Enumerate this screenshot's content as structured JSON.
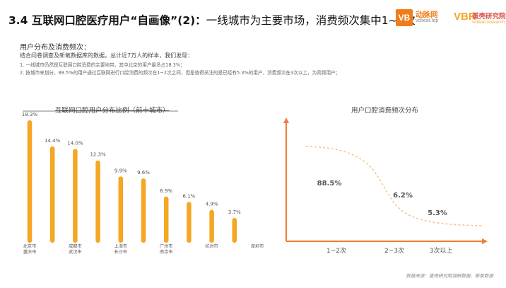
{
  "header": {
    "title_main": "3.4 互联网口腔医疗用户“自画像”(2)：",
    "title_sub": "一线城市为主要市场，消费频次集中1~2次"
  },
  "logos": {
    "vcbeat": {
      "mark": "VB",
      "name": "动脉网",
      "web": "vcbeat.top"
    },
    "vbr": {
      "mark": "VBR",
      "name": "蛋壳研究院",
      "web": "vcbeat research"
    }
  },
  "section": {
    "heading": "用户分布及消费频次：",
    "intro": "结合问卷调查及新氧数据库的数据，总计近7万人的样本，我们发现：",
    "findings": [
      "1.    一线城市仍然是互联网口腔消费的主要地带，其中北京的用户最多占18.3%；",
      "2.    按城市来划分，88.5%的用户通过互联网进行口腔消费的频次在1~2次之间，但是值得关注的是已经有5.3%的用户，消费频次在3次以上，为高频用户；"
    ]
  },
  "chart_data": [
    {
      "type": "bar",
      "title": "互联网口腔用户分布比例（前十城市）",
      "categories": [
        "北京市",
        "重庆市",
        "成都市",
        "武汉市",
        "上海市",
        "长沙市",
        "广州市",
        "南京市",
        "杭州市",
        "深圳市"
      ],
      "values": [
        18.3,
        14.4,
        14.0,
        12.3,
        9.9,
        9.6,
        6.9,
        6.1,
        4.9,
        3.7
      ],
      "value_labels": [
        "18.3%",
        "14.4%",
        "14.0%",
        "12.3%",
        "9.9%",
        "9.6%",
        "6.9%",
        "6.1%",
        "4.9%",
        "3.7%"
      ],
      "tick_labels": [
        [
          "北京市",
          "重庆市"
        ],
        [
          "成都市",
          "武汉市"
        ],
        [
          "上海市",
          "长沙市"
        ],
        [
          "广州市",
          "南京市"
        ],
        [
          "杭州市"
        ],
        [
          "深圳市"
        ]
      ],
      "ylim": [
        0,
        20
      ],
      "color": "#f5a623"
    },
    {
      "type": "line",
      "title": "用户口腔消费频次分布",
      "categories": [
        "1~2次",
        "2~3次",
        "3次以上"
      ],
      "values": [
        88.5,
        6.2,
        5.3
      ],
      "value_labels": [
        "88.5%",
        "6.2%",
        "5.3%"
      ],
      "axis_color": "#f07d3a",
      "line_color": "#f5c28a"
    }
  ],
  "source": "数据来源：蛋壳研究院调研数据、新氧数据"
}
